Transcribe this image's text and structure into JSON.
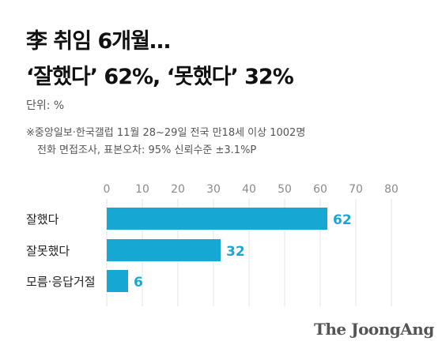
{
  "header": {
    "title_line1": "李 취임 6개월…",
    "title_line2": "‘잘했다’ 62%, ‘못했다’ 32%",
    "unit": "단위: %",
    "note_line1": "※중앙일보·한국갤럽 11월 28~29일 전국 만18세 이상 1002명",
    "note_line2": "전화 면접조사, 표본오차: 95% 신뢰수준 ±3.1%P"
  },
  "brand": "The JoongAng",
  "colors": {
    "bar": "#16a8d3",
    "label": "#16a8d3",
    "grid": "#e3e3e3",
    "tick": "#8a8a8a"
  },
  "chart_data": {
    "type": "bar",
    "orientation": "horizontal",
    "categories": [
      "잘했다",
      "잘못했다",
      "모름·응답거절"
    ],
    "values": [
      62,
      32,
      6
    ],
    "xlim": [
      0,
      80
    ],
    "xticks": [
      0,
      10,
      20,
      30,
      40,
      50,
      60,
      70,
      80
    ],
    "grid": true
  }
}
